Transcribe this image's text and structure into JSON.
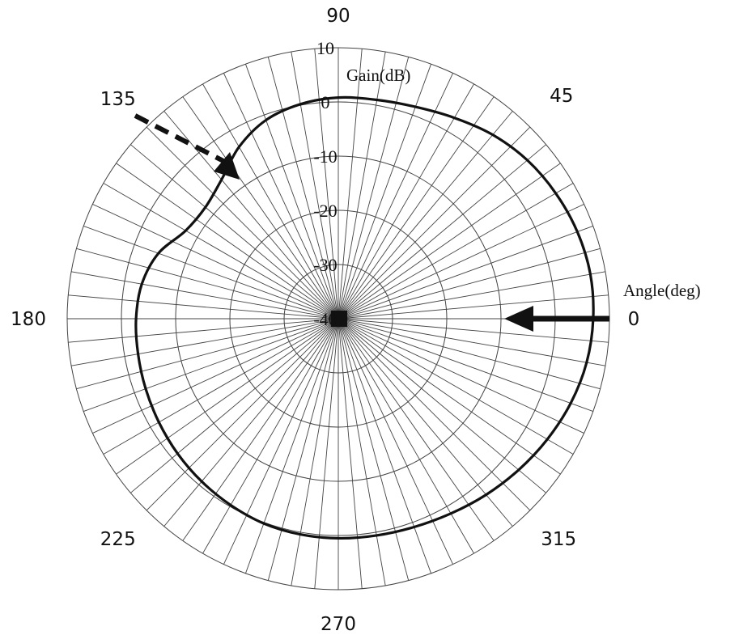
{
  "chart_data": {
    "type": "line",
    "subtype": "polar",
    "radial_axis_label": "Gain(dB)",
    "angular_axis_label": "Angle(deg)",
    "radial_range": [
      -40,
      10
    ],
    "radial_ticks": [
      {
        "value": 10,
        "label": "10"
      },
      {
        "value": 0,
        "label": "0"
      },
      {
        "value": -10,
        "label": "-10"
      },
      {
        "value": -20,
        "label": "-20"
      },
      {
        "value": -30,
        "label": "-30"
      },
      {
        "value": -40,
        "label": "-40"
      }
    ],
    "angle_ticks": [
      {
        "value": 0,
        "label": "0"
      },
      {
        "value": 45,
        "label": "45"
      },
      {
        "value": 90,
        "label": "90"
      },
      {
        "value": 135,
        "label": "135"
      },
      {
        "value": 180,
        "label": "180"
      },
      {
        "value": 225,
        "label": "225"
      },
      {
        "value": 270,
        "label": "270"
      },
      {
        "value": 315,
        "label": "315"
      }
    ],
    "spoke_step_deg": 5,
    "grid": true,
    "line_color": "#111111",
    "series": [
      {
        "angle_deg": [
          0,
          10,
          20,
          30,
          40,
          50,
          60,
          70,
          80,
          90,
          100,
          110,
          120,
          130,
          140,
          150,
          160,
          170,
          180,
          190,
          200,
          210,
          220,
          230,
          240,
          250,
          260,
          270,
          280,
          290,
          300,
          310,
          320,
          330,
          340,
          350
        ],
        "gain_db": [
          7.0,
          7.2,
          6.9,
          6.3,
          5.5,
          4.3,
          2.8,
          1.6,
          1.0,
          0.8,
          0.2,
          -1.0,
          -3.4,
          -6.5,
          -8.0,
          -7.5,
          -4.7,
          -3.2,
          -2.7,
          -2.5,
          -2.2,
          -1.8,
          -1.3,
          -0.8,
          -0.3,
          0.2,
          0.4,
          0.5,
          0.6,
          0.9,
          1.5,
          2.4,
          3.4,
          4.5,
          5.6,
          6.5
        ]
      }
    ],
    "annotations": [
      {
        "type": "arrow",
        "style": "solid",
        "direction_deg": 0
      },
      {
        "type": "arrow",
        "style": "dashed",
        "direction_deg": 135
      }
    ]
  }
}
